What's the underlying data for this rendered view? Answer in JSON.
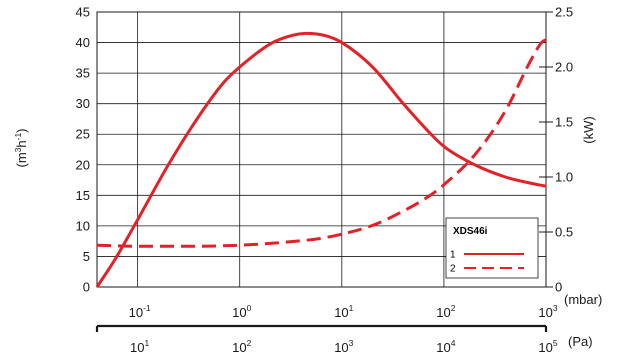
{
  "chart_data": {
    "type": "line",
    "x_scale": "log",
    "x_unit_top": "(mbar)",
    "x_unit_bottom": "(Pa)",
    "x_ticks_mbar": [
      {
        "base": "10",
        "exp": "-1",
        "value": 0.1
      },
      {
        "base": "10",
        "exp": "0",
        "value": 1
      },
      {
        "base": "10",
        "exp": "1",
        "value": 10
      },
      {
        "base": "10",
        "exp": "2",
        "value": 100
      },
      {
        "base": "10",
        "exp": "3",
        "value": 1000
      }
    ],
    "x_ticks_pa": [
      {
        "base": "10",
        "exp": "1",
        "value": 10
      },
      {
        "base": "10",
        "exp": "2",
        "value": 100
      },
      {
        "base": "10",
        "exp": "3",
        "value": 1000
      },
      {
        "base": "10",
        "exp": "4",
        "value": 10000
      },
      {
        "base": "10",
        "exp": "5",
        "value": 100000
      }
    ],
    "xlim_mbar": [
      0.04,
      1000
    ],
    "y_left": {
      "label_base": "(m",
      "label_sup1": "3",
      "label_mid": "h",
      "label_sup2": "-1",
      "label_end": ")",
      "ylim": [
        0,
        45
      ],
      "ticks": [
        "0",
        "5",
        "10",
        "15",
        "20",
        "25",
        "30",
        "35",
        "40",
        "45"
      ]
    },
    "y_right": {
      "label": "(kW)",
      "ylim": [
        0,
        2.5
      ],
      "ticks": [
        "0",
        "0.5",
        "1.0",
        "1.5",
        "2.0",
        "2.5"
      ]
    },
    "grid": true,
    "legend": {
      "title": "XDS46i",
      "placement": "bottom-right",
      "items": [
        {
          "label": "1",
          "style": "solid"
        },
        {
          "label": "2",
          "style": "dashed"
        }
      ]
    },
    "series": [
      {
        "name": "1",
        "axis": "left",
        "style": "solid",
        "color": "#e32126",
        "points": [
          [
            0.04,
            0
          ],
          [
            0.06,
            4.5
          ],
          [
            0.1,
            11
          ],
          [
            0.2,
            20
          ],
          [
            0.4,
            28
          ],
          [
            0.7,
            33.5
          ],
          [
            1,
            36
          ],
          [
            2,
            39.8
          ],
          [
            3,
            41
          ],
          [
            4.5,
            41.5
          ],
          [
            7,
            41.1
          ],
          [
            10,
            40
          ],
          [
            20,
            36
          ],
          [
            40,
            30
          ],
          [
            70,
            25.5
          ],
          [
            100,
            23
          ],
          [
            200,
            20
          ],
          [
            400,
            18
          ],
          [
            700,
            17
          ],
          [
            1000,
            16.5
          ]
        ]
      },
      {
        "name": "2",
        "axis": "right",
        "style": "dashed",
        "color": "#e32126",
        "points": [
          [
            0.04,
            0.38
          ],
          [
            0.1,
            0.37
          ],
          [
            0.3,
            0.37
          ],
          [
            1,
            0.38
          ],
          [
            3,
            0.41
          ],
          [
            6,
            0.44
          ],
          [
            10,
            0.48
          ],
          [
            20,
            0.56
          ],
          [
            40,
            0.69
          ],
          [
            70,
            0.82
          ],
          [
            100,
            0.93
          ],
          [
            200,
            1.2
          ],
          [
            400,
            1.6
          ],
          [
            700,
            2.05
          ],
          [
            900,
            2.22
          ],
          [
            1000,
            2.25
          ]
        ]
      }
    ]
  }
}
